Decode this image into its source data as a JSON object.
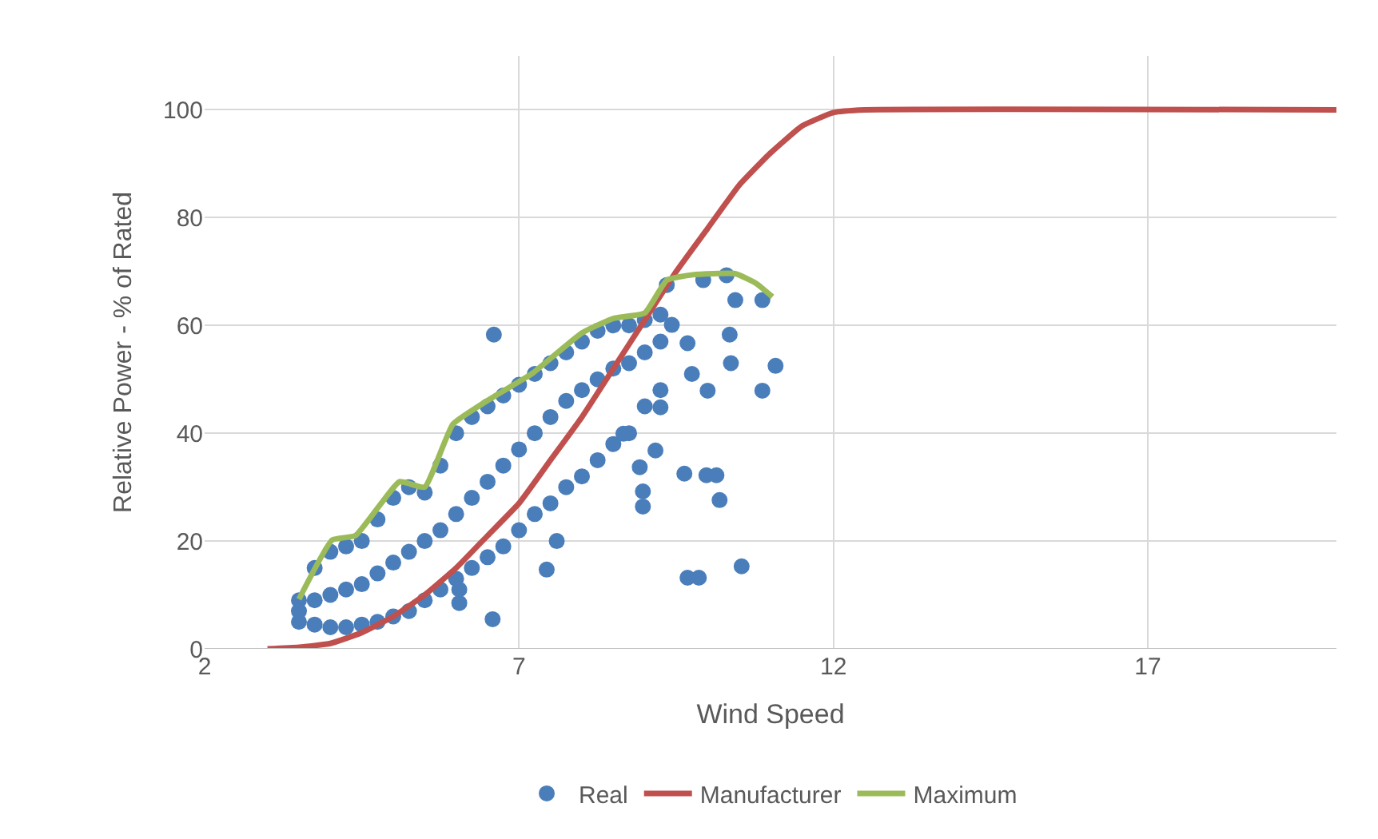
{
  "chart_data": {
    "type": "scatter",
    "xlabel": "Wind Speed",
    "ylabel": "Relative Power - % of Rated",
    "xlim": [
      2,
      20
    ],
    "xticks": [
      2,
      7,
      12,
      17
    ],
    "ylim": [
      0,
      110
    ],
    "yticks": [
      0,
      20,
      40,
      60,
      80,
      100
    ],
    "grid": true,
    "legend": "bottom",
    "series": [
      {
        "name": "Real",
        "marker": "circle",
        "color": "#4a7ebb",
        "x": [
          3.5,
          3.5,
          3.5,
          3.75,
          3.75,
          3.75,
          4.0,
          4.0,
          4.0,
          4.25,
          4.25,
          4.25,
          4.5,
          4.5,
          4.5,
          4.75,
          4.75,
          4.75,
          5.0,
          5.0,
          5.0,
          5.25,
          5.25,
          5.25,
          5.5,
          5.5,
          5.5,
          5.75,
          5.75,
          5.75,
          6.0,
          6.0,
          6.0,
          6.25,
          6.25,
          6.25,
          6.5,
          6.5,
          6.5,
          6.75,
          6.75,
          6.75,
          7.0,
          7.0,
          7.0,
          7.25,
          7.25,
          7.25,
          7.5,
          7.5,
          7.5,
          7.75,
          7.75,
          7.75,
          8.0,
          8.0,
          8.0,
          8.25,
          8.25,
          8.25,
          8.5,
          8.5,
          8.5,
          8.75,
          8.75,
          8.75,
          9.0,
          9.0,
          9.0,
          9.25,
          9.25,
          9.25,
          6.6,
          6.58,
          6.05,
          6.05,
          7.44,
          7.6,
          9.68,
          9.86,
          10.54,
          9.63,
          9.98,
          10.14,
          10.19,
          8.92,
          8.97,
          8.97,
          11.08,
          10.87,
          10.0,
          10.35,
          10.44,
          10.87,
          9.68,
          9.35,
          9.93,
          10.3,
          9.25,
          9.17,
          8.66,
          9.43,
          9.75,
          10.37
        ],
        "values": [
          5,
          7,
          9,
          4.5,
          9,
          15,
          4,
          10,
          18,
          4,
          11,
          19,
          4.5,
          12,
          20,
          5,
          14,
          24,
          6,
          16,
          28,
          7,
          18,
          30,
          9,
          20,
          29,
          11,
          22,
          34,
          13,
          25,
          40,
          15,
          28,
          43,
          17,
          31,
          45,
          19,
          34,
          47,
          22,
          37,
          49,
          25,
          40,
          51,
          27,
          43,
          53,
          30,
          46,
          55,
          32,
          48,
          57,
          35,
          50,
          59,
          38,
          52,
          60,
          40,
          53,
          60,
          45,
          55,
          61,
          48,
          57,
          62,
          58.3,
          5.5,
          8.5,
          11,
          14.7,
          20,
          13.2,
          13.2,
          15.3,
          32.5,
          32.2,
          32.2,
          27.6,
          33.7,
          29.2,
          26.4,
          52.5,
          47.9,
          47.9,
          58.3,
          64.7,
          64.7,
          56.7,
          67.5,
          68.4,
          69.3,
          44.8,
          36.8,
          39.9,
          60.1,
          51,
          53
        ]
      },
      {
        "name": "Manufacturer",
        "type": "line",
        "marker": "none",
        "color": "#c0504d",
        "x": [
          3,
          3.5,
          4,
          4.5,
          5,
          5.5,
          6,
          6.5,
          7,
          7.5,
          8,
          8.5,
          9,
          9.5,
          10,
          10.5,
          11,
          11.5,
          12,
          12.5,
          20
        ],
        "values": [
          0,
          0.3,
          1,
          3,
          6,
          10,
          15,
          21,
          27,
          35,
          43,
          52,
          61,
          70,
          78,
          86,
          92,
          97,
          99.5,
          100,
          100
        ]
      },
      {
        "name": "Maximum",
        "type": "line",
        "marker": "none",
        "color": "#9bbb59",
        "x": [
          3.5,
          4.03,
          4.4,
          5.1,
          5.5,
          5.95,
          6.63,
          7.2,
          8,
          8.5,
          9,
          9.35,
          9.76,
          10.44,
          10.77,
          11.03
        ],
        "values": [
          9.2,
          20.2,
          21,
          31,
          30,
          41.7,
          47,
          51,
          58.6,
          61.3,
          62.3,
          68.4,
          69.4,
          69.6,
          67.8,
          65.3
        ]
      }
    ]
  }
}
